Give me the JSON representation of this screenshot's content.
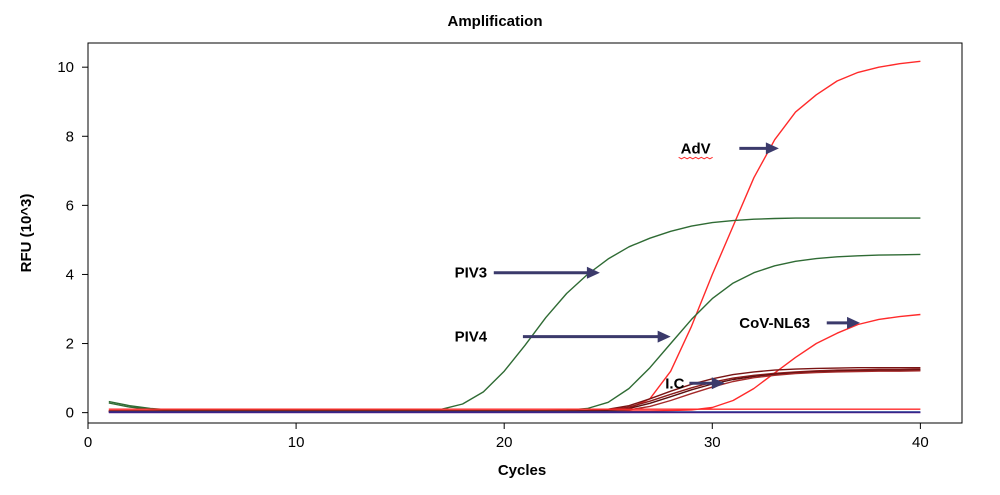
{
  "chart_data": {
    "type": "line",
    "title": "Amplification",
    "xlabel": "Cycles",
    "ylabel": "RFU (10^3)",
    "xlim": [
      0,
      42
    ],
    "ylim": [
      -0.3,
      10.7
    ],
    "xticks": [
      0,
      10,
      20,
      30,
      40
    ],
    "yticks": [
      0,
      2,
      4,
      6,
      8,
      10
    ],
    "grid": false,
    "legend": "none",
    "x": [
      1,
      2,
      3,
      4,
      5,
      6,
      7,
      8,
      9,
      10,
      11,
      12,
      13,
      14,
      15,
      16,
      17,
      18,
      19,
      20,
      21,
      22,
      23,
      24,
      25,
      26,
      27,
      28,
      29,
      30,
      31,
      32,
      33,
      34,
      35,
      36,
      37,
      38,
      39,
      40
    ],
    "series": [
      {
        "color": "#ff2a2a",
        "values": [
          0.05,
          0.05,
          0.05,
          0.05,
          0.05,
          0.05,
          0.05,
          0.05,
          0.05,
          0.05,
          0.05,
          0.05,
          0.05,
          0.05,
          0.05,
          0.05,
          0.05,
          0.05,
          0.05,
          0.05,
          0.05,
          0.05,
          0.05,
          0.05,
          0.06,
          0.12,
          0.4,
          1.2,
          2.5,
          4.0,
          5.4,
          6.8,
          7.9,
          8.7,
          9.2,
          9.6,
          9.85,
          10.0,
          10.1,
          10.17
        ]
      },
      {
        "color": "#2f6b34",
        "values": [
          0.32,
          0.2,
          0.12,
          0.08,
          0.07,
          0.07,
          0.07,
          0.07,
          0.07,
          0.07,
          0.07,
          0.07,
          0.07,
          0.07,
          0.07,
          0.07,
          0.1,
          0.25,
          0.6,
          1.2,
          1.95,
          2.75,
          3.45,
          4.0,
          4.45,
          4.8,
          5.05,
          5.25,
          5.4,
          5.5,
          5.56,
          5.6,
          5.62,
          5.63,
          5.63,
          5.63,
          5.63,
          5.63,
          5.63,
          5.63
        ]
      },
      {
        "color": "#2f6b34",
        "values": [
          0.28,
          0.16,
          0.1,
          0.07,
          0.06,
          0.06,
          0.06,
          0.06,
          0.06,
          0.06,
          0.06,
          0.06,
          0.06,
          0.06,
          0.06,
          0.06,
          0.06,
          0.06,
          0.06,
          0.06,
          0.06,
          0.06,
          0.07,
          0.12,
          0.3,
          0.7,
          1.3,
          2.0,
          2.7,
          3.3,
          3.75,
          4.05,
          4.25,
          4.38,
          4.46,
          4.51,
          4.54,
          4.56,
          4.57,
          4.58
        ]
      },
      {
        "color": "#ff2a2a",
        "values": [
          0.05,
          0.05,
          0.05,
          0.05,
          0.05,
          0.05,
          0.05,
          0.05,
          0.05,
          0.05,
          0.05,
          0.05,
          0.05,
          0.05,
          0.05,
          0.05,
          0.05,
          0.05,
          0.05,
          0.05,
          0.05,
          0.05,
          0.05,
          0.05,
          0.05,
          0.05,
          0.05,
          0.06,
          0.08,
          0.15,
          0.35,
          0.7,
          1.15,
          1.6,
          2.0,
          2.3,
          2.55,
          2.7,
          2.78,
          2.84
        ]
      },
      {
        "color": "#7a1414",
        "values": [
          0.05,
          0.05,
          0.05,
          0.05,
          0.05,
          0.05,
          0.05,
          0.05,
          0.05,
          0.05,
          0.05,
          0.05,
          0.05,
          0.05,
          0.05,
          0.05,
          0.05,
          0.05,
          0.05,
          0.05,
          0.05,
          0.05,
          0.05,
          0.06,
          0.1,
          0.2,
          0.4,
          0.62,
          0.82,
          0.98,
          1.1,
          1.18,
          1.23,
          1.26,
          1.28,
          1.29,
          1.3,
          1.3,
          1.3,
          1.3
        ]
      },
      {
        "color": "#8b1a1a",
        "values": [
          0.04,
          0.04,
          0.04,
          0.04,
          0.04,
          0.04,
          0.04,
          0.04,
          0.04,
          0.04,
          0.04,
          0.04,
          0.04,
          0.04,
          0.04,
          0.04,
          0.04,
          0.04,
          0.04,
          0.04,
          0.04,
          0.04,
          0.04,
          0.05,
          0.08,
          0.16,
          0.33,
          0.53,
          0.72,
          0.88,
          1.0,
          1.08,
          1.14,
          1.18,
          1.21,
          1.23,
          1.24,
          1.25,
          1.25,
          1.26
        ]
      },
      {
        "color": "#5a0f0f",
        "values": [
          0.03,
          0.03,
          0.03,
          0.03,
          0.03,
          0.03,
          0.03,
          0.03,
          0.03,
          0.03,
          0.03,
          0.03,
          0.03,
          0.03,
          0.03,
          0.03,
          0.03,
          0.03,
          0.03,
          0.03,
          0.03,
          0.03,
          0.03,
          0.04,
          0.06,
          0.12,
          0.27,
          0.46,
          0.66,
          0.83,
          0.96,
          1.05,
          1.11,
          1.15,
          1.18,
          1.2,
          1.21,
          1.22,
          1.22,
          1.23
        ]
      },
      {
        "color": "#a52a2a",
        "values": [
          0.03,
          0.03,
          0.03,
          0.03,
          0.03,
          0.03,
          0.03,
          0.03,
          0.03,
          0.03,
          0.03,
          0.03,
          0.03,
          0.03,
          0.03,
          0.03,
          0.03,
          0.03,
          0.03,
          0.03,
          0.03,
          0.03,
          0.03,
          0.03,
          0.04,
          0.08,
          0.18,
          0.35,
          0.55,
          0.74,
          0.9,
          1.01,
          1.08,
          1.13,
          1.16,
          1.18,
          1.19,
          1.2,
          1.2,
          1.21
        ]
      },
      {
        "color": "#ff2a2a",
        "values": [
          0.1,
          0.1,
          0.1,
          0.1,
          0.1,
          0.1,
          0.1,
          0.1,
          0.1,
          0.1,
          0.1,
          0.1,
          0.1,
          0.1,
          0.1,
          0.1,
          0.1,
          0.1,
          0.1,
          0.1,
          0.1,
          0.1,
          0.1,
          0.1,
          0.1,
          0.1,
          0.1,
          0.1,
          0.1,
          0.1,
          0.1,
          0.1,
          0.1,
          0.1,
          0.1,
          0.1,
          0.1,
          0.1,
          0.1,
          0.1
        ]
      },
      {
        "color": "#6a1a8a",
        "values": [
          0.0,
          0.0,
          0.0,
          0.0,
          0.0,
          0.0,
          0.0,
          0.0,
          0.0,
          0.0,
          0.0,
          0.0,
          0.0,
          0.0,
          0.0,
          0.0,
          0.0,
          0.0,
          0.0,
          0.0,
          0.0,
          0.0,
          0.0,
          0.0,
          0.0,
          0.0,
          0.0,
          0.0,
          0.0,
          0.0,
          0.0,
          0.0,
          0.0,
          0.0,
          0.0,
          0.0,
          0.0,
          0.0,
          0.0,
          0.0
        ]
      },
      {
        "color": "#1a2a8a",
        "values": [
          0.02,
          0.02,
          0.02,
          0.02,
          0.02,
          0.02,
          0.02,
          0.02,
          0.02,
          0.02,
          0.02,
          0.02,
          0.02,
          0.02,
          0.02,
          0.02,
          0.02,
          0.02,
          0.02,
          0.02,
          0.02,
          0.02,
          0.02,
          0.02,
          0.02,
          0.02,
          0.02,
          0.02,
          0.02,
          0.02,
          0.02,
          0.02,
          0.02,
          0.02,
          0.02,
          0.02,
          0.02,
          0.02,
          0.02,
          0.02
        ]
      }
    ],
    "annotations": [
      {
        "text": "AdV",
        "x": 29.2,
        "y": 7.65,
        "arrow_from": [
          31.3,
          7.65
        ],
        "arrow_to": [
          33.2,
          7.65
        ]
      },
      {
        "text": "PIV3",
        "x": 18.4,
        "y": 4.05,
        "arrow_from": [
          19.5,
          4.05
        ],
        "arrow_to": [
          24.6,
          4.05
        ]
      },
      {
        "text": "PIV4",
        "x": 18.4,
        "y": 2.2,
        "arrow_from": [
          20.9,
          2.2
        ],
        "arrow_to": [
          28.0,
          2.2
        ]
      },
      {
        "text": "CoV-NL63",
        "x": 33.0,
        "y": 2.6,
        "arrow_from": [
          35.5,
          2.6
        ],
        "arrow_to": [
          37.1,
          2.6
        ]
      },
      {
        "text": "I.C",
        "x": 28.2,
        "y": 0.85,
        "arrow_from": [
          28.9,
          0.85
        ],
        "arrow_to": [
          30.6,
          0.85
        ]
      }
    ],
    "arrow_color": "#3b3a6b",
    "annotation_underline_color": "#ff2a2a"
  }
}
